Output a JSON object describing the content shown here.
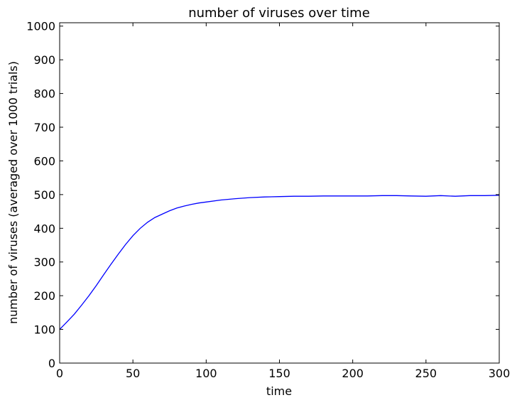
{
  "chart_data": {
    "type": "line",
    "title": "number of viruses over time",
    "xlabel": "time",
    "ylabel": "number of viruses (averaged over 1000 trials)",
    "xlim": [
      0,
      300
    ],
    "ylim": [
      0,
      1010
    ],
    "xticks": [
      0,
      50,
      100,
      150,
      200,
      250,
      300
    ],
    "yticks": [
      0,
      100,
      200,
      300,
      400,
      500,
      600,
      700,
      800,
      900,
      1000
    ],
    "grid": false,
    "series": [
      {
        "color": "#0000ff",
        "x": [
          0,
          5,
          10,
          15,
          20,
          25,
          30,
          35,
          40,
          45,
          50,
          55,
          60,
          65,
          70,
          75,
          80,
          85,
          90,
          95,
          100,
          110,
          120,
          130,
          140,
          150,
          160,
          170,
          180,
          190,
          200,
          210,
          220,
          230,
          240,
          250,
          260,
          270,
          280,
          290,
          300
        ],
        "y": [
          100,
          122,
          145,
          172,
          200,
          230,
          262,
          293,
          323,
          352,
          378,
          400,
          418,
          432,
          442,
          452,
          460,
          466,
          471,
          475,
          478,
          484,
          488,
          491,
          493,
          494,
          495,
          495,
          496,
          496,
          496,
          496,
          497,
          497,
          496,
          495,
          497,
          495,
          497,
          497,
          498
        ]
      }
    ]
  }
}
